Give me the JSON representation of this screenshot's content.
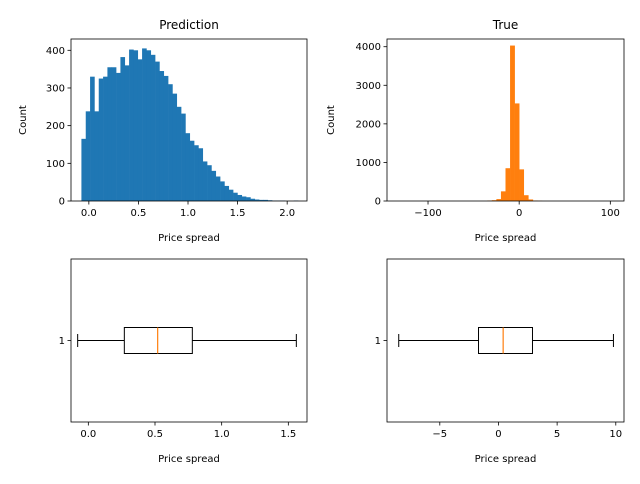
{
  "chart_data": [
    {
      "type": "histogram",
      "title": "Prediction",
      "xlabel": "Price spread",
      "ylabel": "Count",
      "color": "#1f77b4",
      "xlim": [
        -0.18,
        2.2
      ],
      "ylim": [
        0,
        430
      ],
      "xticks": [
        {
          "v": 0.0,
          "t": "0.0"
        },
        {
          "v": 0.5,
          "t": "0.5"
        },
        {
          "v": 1.0,
          "t": "1.0"
        },
        {
          "v": 1.5,
          "t": "1.5"
        },
        {
          "v": 2.0,
          "t": "2.0"
        }
      ],
      "yticks": [
        {
          "v": 0,
          "t": "0"
        },
        {
          "v": 100,
          "t": "100"
        },
        {
          "v": 200,
          "t": "200"
        },
        {
          "v": 300,
          "t": "300"
        },
        {
          "v": 400,
          "t": "400"
        }
      ],
      "bins": {
        "start": -0.075,
        "width": 0.0437,
        "counts": [
          165,
          238,
          330,
          238,
          325,
          330,
          355,
          355,
          340,
          382,
          360,
          402,
          400,
          376,
          405,
          400,
          388,
          370,
          345,
          332,
          310,
          285,
          250,
          232,
          180,
          160,
          148,
          140,
          105,
          95,
          80,
          65,
          52,
          40,
          30,
          22,
          16,
          12,
          10,
          6,
          4,
          3,
          3,
          2,
          1,
          1,
          1,
          0,
          0,
          1
        ]
      }
    },
    {
      "type": "histogram",
      "title": "True",
      "xlabel": "Price spread",
      "ylabel": "Count",
      "color": "#ff7f0e",
      "xlim": [
        -145,
        115
      ],
      "ylim": [
        0,
        4200
      ],
      "xticks": [
        {
          "v": -100,
          "t": "−100"
        },
        {
          "v": 0,
          "t": "0"
        },
        {
          "v": 100,
          "t": "100"
        }
      ],
      "yticks": [
        {
          "v": 0,
          "t": "0"
        },
        {
          "v": 1000,
          "t": "1000"
        },
        {
          "v": 2000,
          "t": "2000"
        },
        {
          "v": 3000,
          "t": "3000"
        },
        {
          "v": 4000,
          "t": "4000"
        }
      ],
      "bins": {
        "start": -35,
        "width": 5,
        "counts": [
          10,
          20,
          50,
          250,
          850,
          4030,
          2530,
          820,
          150,
          40,
          10,
          5
        ]
      }
    },
    {
      "type": "boxplot",
      "xlabel": "Price spread",
      "ytick": "1",
      "box_color": "#000000",
      "median_color": "#ff7f0e",
      "xlim": [
        -0.13,
        1.64
      ],
      "xticks": [
        {
          "v": 0.0,
          "t": "0.0"
        },
        {
          "v": 0.5,
          "t": "0.5"
        },
        {
          "v": 1.0,
          "t": "1.0"
        },
        {
          "v": 1.5,
          "t": "1.5"
        }
      ],
      "whisker_low": -0.08,
      "q1": 0.27,
      "median": 0.52,
      "q3": 0.78,
      "whisker_high": 1.56
    },
    {
      "type": "boxplot",
      "xlabel": "Price spread",
      "ytick": "1",
      "box_color": "#000000",
      "median_color": "#ff7f0e",
      "xlim": [
        -9.5,
        10.7
      ],
      "xticks": [
        {
          "v": -5,
          "t": "−5"
        },
        {
          "v": 0,
          "t": "0"
        },
        {
          "v": 5,
          "t": "5"
        },
        {
          "v": 10,
          "t": "10"
        }
      ],
      "whisker_low": -8.5,
      "q1": -1.7,
      "median": 0.4,
      "q3": 2.9,
      "whisker_high": 9.8
    }
  ]
}
